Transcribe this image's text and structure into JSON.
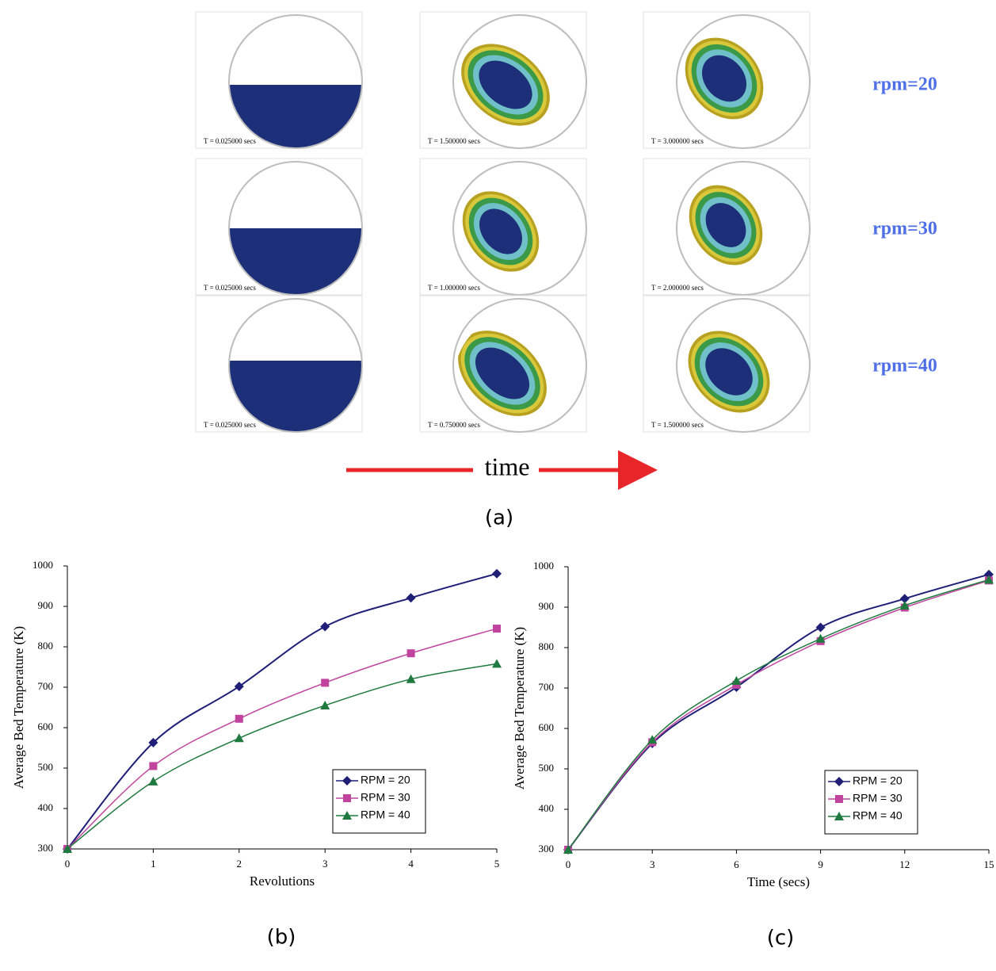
{
  "panel_a": {
    "snapshots": [
      [
        "T = 0.025000 secs",
        "T = 1.500000 secs",
        "T = 3.000000 secs"
      ],
      [
        "T = 0.025000 secs",
        "T = 1.000000 secs",
        "T = 2.000000 secs"
      ],
      [
        "T = 0.025000 secs",
        "T = 0.750000 secs",
        "T = 1.500000 secs"
      ]
    ],
    "row_labels": [
      "rpm=20",
      "rpm=30",
      "rpm=40"
    ],
    "arrow_label": "time",
    "caption": "(a)"
  },
  "chart_data": [
    {
      "type": "line",
      "caption": "(b)",
      "x_label": "Revolutions",
      "y_label": "Average Bed Temperature (K)",
      "x": [
        0,
        1,
        2,
        3,
        4,
        5
      ],
      "series": [
        {
          "name": "RPM = 20",
          "color": "#1f1f78",
          "marker": "diamond",
          "values": [
            300,
            563,
            702,
            850,
            921,
            981
          ]
        },
        {
          "name": "RPM = 30",
          "color": "#c0449e",
          "marker": "square",
          "values": [
            300,
            505,
            622,
            711,
            784,
            845
          ]
        },
        {
          "name": "RPM = 40",
          "color": "#1e7a3e",
          "marker": "triangle",
          "values": [
            300,
            467,
            574,
            655,
            720,
            758
          ]
        }
      ],
      "xlim": [
        0,
        5
      ],
      "xticks": [
        0,
        1,
        2,
        3,
        4,
        5
      ],
      "ylim": [
        300,
        1000
      ],
      "yticks": [
        300,
        400,
        500,
        600,
        700,
        800,
        900,
        1000
      ],
      "legend": "lower right"
    },
    {
      "type": "line",
      "caption": "(c)",
      "x_label": "Time (secs)",
      "y_label": "Average Bed Temperature (K)",
      "x": [
        0,
        3,
        6,
        9,
        12,
        15
      ],
      "series": [
        {
          "name": "RPM = 20",
          "color": "#1f1f78",
          "marker": "diamond",
          "values": [
            300,
            563,
            702,
            850,
            921,
            981
          ]
        },
        {
          "name": "RPM = 30",
          "color": "#c0449e",
          "marker": "square",
          "values": [
            300,
            566,
            708,
            816,
            899,
            966
          ]
        },
        {
          "name": "RPM = 40",
          "color": "#1e7a3e",
          "marker": "triangle",
          "values": [
            300,
            572,
            718,
            822,
            904,
            968
          ]
        }
      ],
      "xlim": [
        0,
        15
      ],
      "xticks": [
        0,
        3,
        6,
        9,
        12,
        15
      ],
      "ylim": [
        300,
        1000
      ],
      "yticks": [
        300,
        400,
        500,
        600,
        700,
        800,
        900,
        1000
      ],
      "legend": "lower right"
    }
  ]
}
